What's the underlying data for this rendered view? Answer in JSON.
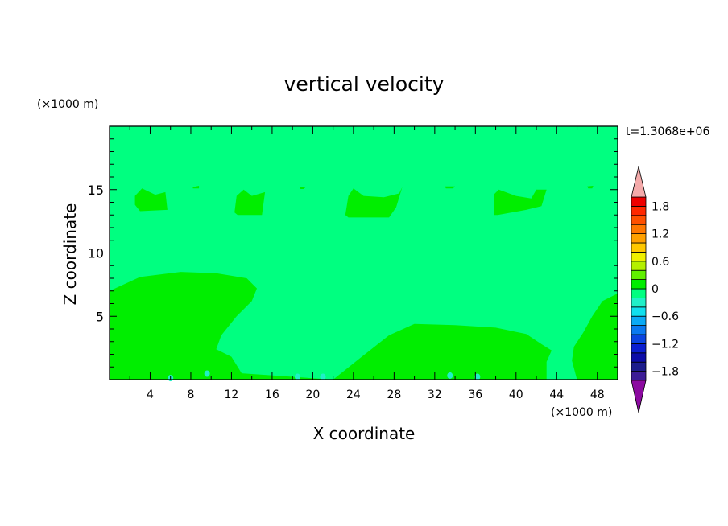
{
  "chart_data": {
    "type": "heatmap",
    "title": "vertical velocity",
    "xlabel": "X coordinate",
    "ylabel": "Z coordinate",
    "x_unit": "(×1000 m)",
    "y_unit": "(×1000 m)",
    "time_label": "t=1.3068e+06",
    "xlim": [
      0,
      50
    ],
    "ylim": [
      0,
      20
    ],
    "x_ticks": [
      4,
      8,
      12,
      16,
      20,
      24,
      28,
      32,
      36,
      40,
      44,
      48
    ],
    "y_ticks": [
      5,
      10,
      15
    ],
    "background_level": "0 to 0.3",
    "colorbar": {
      "levels": [
        -2.0,
        -1.8,
        -1.6,
        -1.4,
        -1.2,
        -1.0,
        -0.8,
        -0.6,
        -0.4,
        -0.2,
        0.0,
        0.2,
        0.4,
        0.6,
        0.8,
        1.0,
        1.2,
        1.4,
        1.6,
        1.8,
        2.0
      ],
      "colors": [
        "#3c1c96",
        "#1c1c8c",
        "#0c0ca8",
        "#0a1ed0",
        "#0a44e0",
        "#0a78f0",
        "#0aaaf5",
        "#10e0ee",
        "#20f0c8",
        "#00ff80",
        "#00ee00",
        "#60f000",
        "#b4f000",
        "#f0f000",
        "#ffc800",
        "#ffa000",
        "#ff7800",
        "#ff5000",
        "#ff2800",
        "#ee0000"
      ],
      "under_color": "#8c0aa0",
      "over_color": "#f4aaaa",
      "tick_labels": [
        "1.8",
        "1.2",
        "0.6",
        "0",
        "−0.6",
        "−1.2",
        "−1.8"
      ],
      "tick_values": [
        1.8,
        1.2,
        0.6,
        0,
        -0.6,
        -1.2,
        -1.8
      ]
    },
    "regions": [
      {
        "level": "0 to 0.2",
        "color": "#00ee00",
        "outline": [
          [
            0,
            0.3
          ],
          [
            0,
            7
          ],
          [
            3,
            8.1
          ],
          [
            7,
            8.5
          ],
          [
            10.5,
            8.4
          ],
          [
            13.5,
            8
          ],
          [
            14.5,
            7.2
          ],
          [
            14,
            6.2
          ],
          [
            12.5,
            5
          ],
          [
            11,
            3.5
          ],
          [
            10.5,
            2.4
          ],
          [
            12,
            1.8
          ],
          [
            13,
            0.5
          ],
          [
            22,
            0
          ],
          [
            0,
            0
          ]
        ]
      },
      {
        "level": "0 to 0.2",
        "color": "#00ee00",
        "outline": [
          [
            22,
            0
          ],
          [
            24.5,
            1.6
          ],
          [
            27.5,
            3.5
          ],
          [
            30,
            4.4
          ],
          [
            34,
            4.3
          ],
          [
            38,
            4.1
          ],
          [
            41,
            3.6
          ],
          [
            42.5,
            2.8
          ],
          [
            43.5,
            2.3
          ],
          [
            43,
            1.4
          ],
          [
            43,
            0.5
          ],
          [
            43,
            0
          ]
        ]
      },
      {
        "level": "0 to 0.2",
        "color": "#00ee00",
        "outline": [
          [
            46,
            0
          ],
          [
            45.5,
            1.5
          ],
          [
            45.7,
            2.6
          ],
          [
            46.6,
            3.7
          ],
          [
            47.5,
            5
          ],
          [
            48.5,
            6.2
          ],
          [
            50,
            6.8
          ],
          [
            50,
            0
          ]
        ]
      },
      {
        "level": "0 to 0.2",
        "color": "#00ee00",
        "outline": [
          [
            2.5,
            13.8
          ],
          [
            2.5,
            14.5
          ],
          [
            3.2,
            15.1
          ],
          [
            4.5,
            14.6
          ],
          [
            5.5,
            14.8
          ],
          [
            5.7,
            13.4
          ],
          [
            3,
            13.3
          ]
        ]
      },
      {
        "level": "0 to 0.2",
        "color": "#00ee00",
        "outline": [
          [
            12.3,
            13.2
          ],
          [
            12.5,
            14.5
          ],
          [
            13.2,
            15
          ],
          [
            14,
            14.5
          ],
          [
            15.3,
            14.8
          ],
          [
            15,
            13
          ],
          [
            12.6,
            13
          ]
        ]
      },
      {
        "level": "0 to 0.2",
        "color": "#00ee00",
        "outline": [
          [
            23.2,
            13
          ],
          [
            23.5,
            14.5
          ],
          [
            24,
            15.1
          ],
          [
            25,
            14.5
          ],
          [
            27,
            14.4
          ],
          [
            28.5,
            14.7
          ],
          [
            28.8,
            15.2
          ],
          [
            28.2,
            13.6
          ],
          [
            27.5,
            12.8
          ],
          [
            23.5,
            12.8
          ]
        ]
      },
      {
        "level": "0 to 0.2",
        "color": "#00ee00",
        "outline": [
          [
            37.8,
            13
          ],
          [
            37.8,
            14.6
          ],
          [
            38.3,
            15
          ],
          [
            40,
            14.5
          ],
          [
            41.5,
            14.3
          ],
          [
            42,
            15
          ],
          [
            43,
            15
          ],
          [
            42.5,
            13.7
          ],
          [
            41,
            13.4
          ],
          [
            38.2,
            13
          ]
        ]
      },
      {
        "level": "0 to 0.2",
        "color": "#00ee00",
        "outline": [
          [
            8.2,
            15.2
          ],
          [
            8.8,
            15.3
          ],
          [
            8.8,
            15.1
          ],
          [
            8.2,
            15.1
          ]
        ]
      },
      {
        "level": "0 to 0.2",
        "color": "#00ee00",
        "outline": [
          [
            18.7,
            15.2
          ],
          [
            19.3,
            15.2
          ],
          [
            19.1,
            15.05
          ],
          [
            18.8,
            15.05
          ]
        ]
      },
      {
        "level": "0 to 0.2",
        "color": "#00ee00",
        "outline": [
          [
            33,
            15.25
          ],
          [
            34,
            15.25
          ],
          [
            33.8,
            15.1
          ],
          [
            33.1,
            15.1
          ]
        ]
      },
      {
        "level": "0 to 0.2",
        "color": "#00ee00",
        "outline": [
          [
            47,
            15.25
          ],
          [
            47.6,
            15.3
          ],
          [
            47.5,
            15.1
          ],
          [
            47.1,
            15.1
          ]
        ]
      }
    ],
    "surface_blobs": [
      {
        "level": "-0.4 to -0.2",
        "color": "#20f0c8",
        "x": 6.0,
        "z": 0.25
      },
      {
        "level": "-0.4 to -0.2",
        "color": "#20f0c8",
        "x": 9.6,
        "z": 0.6
      },
      {
        "level": "-0.4 to -0.2",
        "color": "#20f0c8",
        "x": 18.5,
        "z": 0.35
      },
      {
        "level": "-0.4 to -0.2",
        "color": "#20f0c8",
        "x": 21.0,
        "z": 0.35
      },
      {
        "level": "-0.4 to -0.2",
        "color": "#20f0c8",
        "x": 33.5,
        "z": 0.45
      },
      {
        "level": "-0.4 to -0.2",
        "color": "#20f0c8",
        "x": 36.2,
        "z": 0.35
      }
    ]
  }
}
